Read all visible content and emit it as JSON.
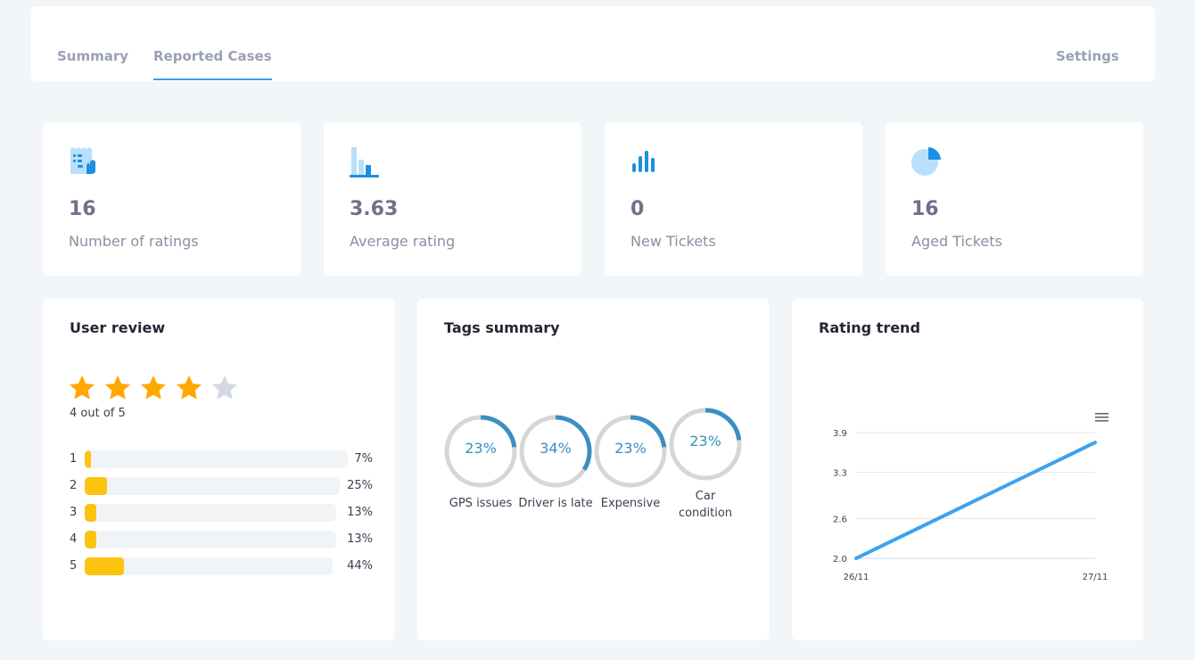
{
  "tabs": {
    "summary": "Summary",
    "reported": "Reported Cases",
    "settings": "Settings"
  },
  "stats": [
    {
      "value": "16",
      "label": "Number of ratings",
      "icon": "receipt-icon"
    },
    {
      "value": "3.63",
      "label": "Average rating",
      "icon": "bar-chart-icon"
    },
    {
      "value": "0",
      "label": "New Tickets",
      "icon": "signal-bars-icon"
    },
    {
      "value": "16",
      "label": "Aged Tickets",
      "icon": "pie-chart-icon"
    }
  ],
  "user_review": {
    "title": "User review",
    "stars_filled": 4,
    "stars_total": 5,
    "caption": "4 out of 5",
    "bars": [
      {
        "label": "1",
        "pct": "7%",
        "fill": 0.07
      },
      {
        "label": "2",
        "pct": "25%",
        "fill": 0.25
      },
      {
        "label": "3",
        "pct": "13%",
        "fill": 0.13
      },
      {
        "label": "4",
        "pct": "13%",
        "fill": 0.13
      },
      {
        "label": "5",
        "pct": "44%",
        "fill": 0.44
      }
    ]
  },
  "tags_summary": {
    "title": "Tags summary",
    "tags": [
      {
        "label": "GPS issues",
        "pct": "23%",
        "value": 0.23
      },
      {
        "label": "Driver is late",
        "pct": "34%",
        "value": 0.34
      },
      {
        "label": "Expensive",
        "pct": "23%",
        "value": 0.23
      },
      {
        "label": "Car\ncondition",
        "pct": "23%",
        "value": 0.23
      }
    ]
  },
  "rating_trend": {
    "title": "Rating trend",
    "chart_data": {
      "type": "line",
      "x": [
        "26/11",
        "27/11"
      ],
      "series": [
        {
          "values": [
            2.0,
            3.75
          ]
        }
      ],
      "yticks": [
        "2.0",
        "2.6",
        "3.3",
        "3.9"
      ],
      "ylim": [
        2.0,
        3.9
      ],
      "grid": true,
      "color": "#3ca1f0"
    }
  },
  "colors": {
    "accent": "#3b9be6",
    "bar_fill": "#fcc30f",
    "star_filled": "#ffa800",
    "star_empty": "#d4d8e3",
    "donut_arc": "#3b8fc2",
    "donut_track": "#d6d6d6"
  }
}
